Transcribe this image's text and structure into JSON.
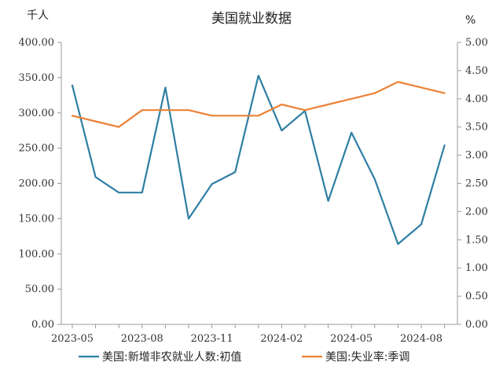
{
  "chart_data": {
    "type": "line",
    "title": "美国就业数据",
    "left_unit": "千人",
    "right_unit": "%",
    "x": [
      "2023-05",
      "2023-06",
      "2023-07",
      "2023-08",
      "2023-09",
      "2023-10",
      "2023-11",
      "2023-12",
      "2024-01",
      "2024-02",
      "2024-03",
      "2024-04",
      "2024-05",
      "2024-06",
      "2024-07",
      "2024-08",
      "2024-09"
    ],
    "x_tick_labels": [
      "2023-05",
      "2023-08",
      "2023-11",
      "2024-02",
      "2024-05",
      "2024-08"
    ],
    "y_left_ticks": [
      "0.00",
      "50.00",
      "100.00",
      "150.00",
      "200.00",
      "250.00",
      "300.00",
      "350.00",
      "400.00"
    ],
    "y_right_ticks": [
      "0.00",
      "0.50",
      "1.00",
      "1.50",
      "2.00",
      "2.50",
      "3.00",
      "3.50",
      "4.00",
      "4.50",
      "5.00"
    ],
    "ylim_left": [
      0,
      400
    ],
    "ylim_right": [
      0,
      5
    ],
    "legend_position": "bottom",
    "series": [
      {
        "name": "美国:新增非农就业人数:初值",
        "axis": "left",
        "color": "#2e7ea3",
        "values": [
          339,
          209,
          187,
          187,
          336,
          150,
          199,
          216,
          353,
          275,
          303,
          175,
          272,
          206,
          114,
          142,
          254
        ]
      },
      {
        "name": "美国:失业率:季调",
        "axis": "right",
        "color": "#ed8136",
        "values": [
          3.7,
          3.6,
          3.5,
          3.8,
          3.8,
          3.8,
          3.7,
          3.7,
          3.7,
          3.9,
          3.8,
          3.9,
          4.0,
          4.1,
          4.3,
          4.2,
          4.1
        ]
      }
    ]
  }
}
